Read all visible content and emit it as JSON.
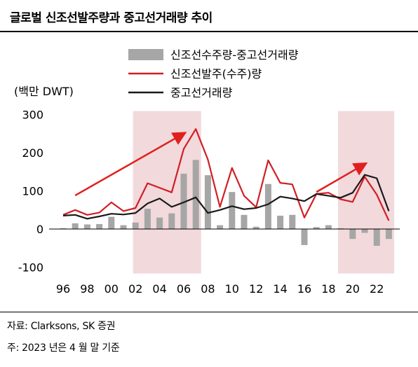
{
  "title": "글로벌 신조선발주량과 중고선거래량 추이",
  "unit_label": "(백만 DWT)",
  "source_line": "자료: Clarksons, SK 증권",
  "note_line": "주: 2023 년은 4 월 말 기준",
  "colors": {
    "bar": "#a6a6a6",
    "newbuild_line": "#d11f24",
    "secondhand_line": "#1a1a1a",
    "shade": "#f2d9dc",
    "arrow": "#e0201e"
  },
  "chart_data": {
    "type": "bar+line",
    "x_tick_labels": [
      "96",
      "98",
      "00",
      "02",
      "04",
      "06",
      "08",
      "10",
      "12",
      "14",
      "16",
      "18",
      "20",
      "22"
    ],
    "y_tick_labels": [
      "300",
      "200",
      "100",
      "0",
      "-100"
    ],
    "ylim": [
      -100,
      300
    ],
    "x": [
      1996,
      1997,
      1998,
      1999,
      2000,
      2001,
      2002,
      2003,
      2004,
      2005,
      2006,
      2007,
      2008,
      2009,
      2010,
      2011,
      2012,
      2013,
      2014,
      2015,
      2016,
      2017,
      2018,
      2019,
      2020,
      2021,
      2022,
      2023
    ],
    "series": [
      {
        "name": "신조선수주량-중고선거래량",
        "type": "bar",
        "values": [
          2,
          15,
          12,
          13,
          32,
          10,
          17,
          53,
          30,
          41,
          145,
          181,
          141,
          10,
          97,
          37,
          6,
          118,
          35,
          37,
          -42,
          5,
          10,
          2,
          -26,
          -10,
          -44,
          -26
        ]
      },
      {
        "name": "신조선발주(수주)량",
        "type": "line",
        "values": [
          37,
          50,
          37,
          43,
          70,
          47,
          55,
          120,
          108,
          96,
          210,
          262,
          182,
          58,
          160,
          87,
          57,
          180,
          121,
          117,
          30,
          92,
          95,
          78,
          71,
          137,
          90,
          22
        ]
      },
      {
        "name": "중고선거래량",
        "type": "line",
        "values": [
          35,
          37,
          27,
          33,
          40,
          38,
          42,
          67,
          80,
          58,
          70,
          83,
          42,
          50,
          60,
          52,
          55,
          65,
          85,
          80,
          73,
          92,
          87,
          82,
          95,
          142,
          133,
          47
        ]
      }
    ],
    "shaded_ranges": [
      [
        2002,
        2007
      ],
      [
        2019,
        2023
      ]
    ],
    "trend_arrows": [
      {
        "from": [
          1997,
          88
        ],
        "to": [
          2006,
          250
        ]
      },
      {
        "from": [
          2017,
          97
        ],
        "to": [
          2021,
          170
        ]
      }
    ],
    "legend_position": "top-right",
    "grid": false
  }
}
